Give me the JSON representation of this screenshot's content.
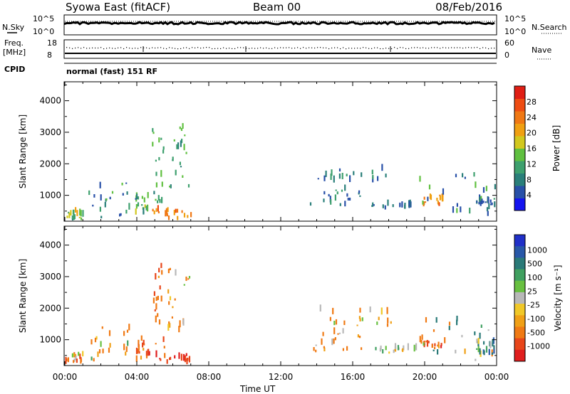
{
  "header": {
    "station": "Syowa East (fitACF)",
    "beam": "Beam 00",
    "date": "08/Feb/2016"
  },
  "noise_panel": {
    "left_label": "N.Sky",
    "right_label": "N.Search",
    "left_ticks": [
      "10^5",
      "10^0"
    ],
    "right_ticks": [
      "10^5",
      "10^0"
    ]
  },
  "freq_panel": {
    "left_label_top": "Freq.",
    "left_label_unit": "[MHz]",
    "left_ticks": [
      "18",
      "8"
    ],
    "right_label": "Nave",
    "right_ticks": [
      "60",
      "0"
    ]
  },
  "cpid": {
    "label": "CPID",
    "value": "normal (fast) 151 RF"
  },
  "colors": {
    "power_scale": [
      "#1414f0",
      "#2850a8",
      "#2a7f7a",
      "#3ea06e",
      "#60c040",
      "#d2c81e",
      "#f0a012",
      "#f07814",
      "#ee4c12",
      "#e01e14"
    ],
    "velocity_scale": [
      "#2030c8",
      "#2858a8",
      "#2a7a78",
      "#40a060",
      "#68c040",
      "#b8b8b8",
      "#f0c828",
      "#f0a016",
      "#f07a14",
      "#e8461a",
      "#e01e1e"
    ]
  },
  "chart_data": [
    {
      "type": "heatmap",
      "name": "Power",
      "title": "",
      "xlabel": "Time UT",
      "ylabel": "Slant Range [km]",
      "x_ticks": [
        "00:00",
        "04:00",
        "08:00",
        "12:00",
        "16:00",
        "20:00",
        "00:00"
      ],
      "y_ticks": [
        "1000",
        "2000",
        "3000",
        "4000"
      ],
      "xlim_hours": [
        0,
        24
      ],
      "ylim_km": [
        180,
        4600
      ],
      "colorbar": {
        "label": "Power [dB]",
        "ticks": [
          "4",
          "8",
          "12",
          "16",
          "20",
          "24",
          "28"
        ],
        "range": [
          0,
          32
        ]
      },
      "clusters": [
        {
          "t0": 0.0,
          "t1": 1.0,
          "r0": 200,
          "r1": 500,
          "value": [
            8,
            22
          ]
        },
        {
          "t0": 1.3,
          "t1": 3.6,
          "r0": 200,
          "r1": 1400,
          "value": [
            4,
            14
          ]
        },
        {
          "t0": 3.9,
          "t1": 4.6,
          "r0": 300,
          "r1": 1000,
          "value": [
            6,
            18
          ]
        },
        {
          "t0": 4.6,
          "t1": 7.0,
          "r0": 200,
          "r1": 500,
          "value": [
            20,
            28
          ]
        },
        {
          "t0": 4.8,
          "t1": 5.5,
          "r0": 700,
          "r1": 3300,
          "value": [
            8,
            16
          ]
        },
        {
          "t0": 5.7,
          "t1": 6.9,
          "r0": 1200,
          "r1": 3300,
          "value": [
            8,
            16
          ]
        },
        {
          "t0": 14.0,
          "t1": 18.2,
          "r0": 1400,
          "r1": 1900,
          "value": [
            4,
            12
          ]
        },
        {
          "t0": 13.5,
          "t1": 16.5,
          "r0": 600,
          "r1": 1200,
          "value": [
            4,
            12
          ]
        },
        {
          "t0": 17.0,
          "t1": 19.5,
          "r0": 550,
          "r1": 700,
          "value": [
            4,
            10
          ]
        },
        {
          "t0": 19.7,
          "t1": 21.2,
          "r0": 650,
          "r1": 1000,
          "value": [
            20,
            26
          ]
        },
        {
          "t0": 19.6,
          "t1": 23.9,
          "r0": 300,
          "r1": 1600,
          "value": [
            4,
            16
          ]
        },
        {
          "t0": 22.8,
          "t1": 23.9,
          "r0": 500,
          "r1": 900,
          "value": [
            4,
            10
          ]
        }
      ]
    },
    {
      "type": "heatmap",
      "name": "Velocity",
      "title": "",
      "xlabel": "Time UT",
      "ylabel": "Slant Range [km]",
      "x_ticks": [
        "00:00",
        "04:00",
        "08:00",
        "12:00",
        "16:00",
        "20:00",
        "00:00"
      ],
      "y_ticks": [
        "1000",
        "2000",
        "3000",
        "4000"
      ],
      "xlim_hours": [
        0,
        24
      ],
      "ylim_km": [
        180,
        4600
      ],
      "colorbar": {
        "label": "Velocity [m s^-1]",
        "ticks": [
          "1000",
          "500",
          "100",
          "25",
          "-25",
          "-100",
          "-500",
          "-1000"
        ]
      },
      "clusters": [
        {
          "t0": 0.0,
          "t1": 1.0,
          "r0": 200,
          "r1": 500,
          "value": [
            -400,
            50
          ]
        },
        {
          "t0": 1.3,
          "t1": 3.6,
          "r0": 200,
          "r1": 1400,
          "value": [
            -300,
            100
          ]
        },
        {
          "t0": 3.9,
          "t1": 4.6,
          "r0": 300,
          "r1": 1000,
          "value": [
            -500,
            -50
          ]
        },
        {
          "t0": 4.6,
          "t1": 7.0,
          "r0": 200,
          "r1": 500,
          "value": [
            -700,
            -150
          ]
        },
        {
          "t0": 4.8,
          "t1": 5.5,
          "r0": 700,
          "r1": 3300,
          "value": [
            -400,
            -50
          ]
        },
        {
          "t0": 5.7,
          "t1": 6.9,
          "r0": 1200,
          "r1": 3300,
          "value": [
            -300,
            50
          ]
        },
        {
          "t0": 14.0,
          "t1": 18.2,
          "r0": 1400,
          "r1": 1900,
          "value": [
            -200,
            50
          ]
        },
        {
          "t0": 13.5,
          "t1": 16.5,
          "r0": 600,
          "r1": 1200,
          "value": [
            -300,
            0
          ]
        },
        {
          "t0": 17.0,
          "t1": 19.5,
          "r0": 550,
          "r1": 700,
          "value": [
            -100,
            100
          ]
        },
        {
          "t0": 19.7,
          "t1": 21.2,
          "r0": 650,
          "r1": 1000,
          "value": [
            -600,
            -100
          ]
        },
        {
          "t0": 19.6,
          "t1": 23.9,
          "r0": 300,
          "r1": 1600,
          "value": [
            -150,
            200
          ]
        },
        {
          "t0": 22.8,
          "t1": 23.9,
          "r0": 500,
          "r1": 900,
          "value": [
            -50,
            400
          ]
        }
      ]
    }
  ]
}
